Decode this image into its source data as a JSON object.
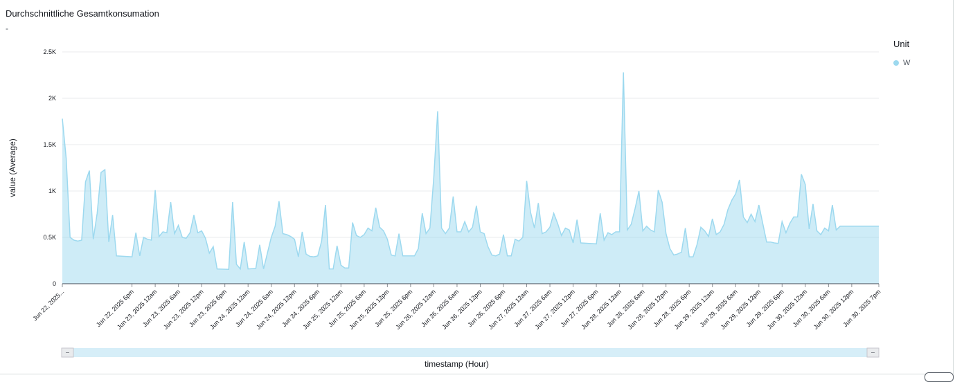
{
  "panel": {
    "title": "Durchschnittliche Gesamtkonsumation",
    "subtitle": "-"
  },
  "legend": {
    "title": "Unit",
    "items": [
      {
        "label": "W",
        "color": "#9dd9ef"
      }
    ]
  },
  "chart_data": {
    "type": "area",
    "ylabel": "value (Average)",
    "xlabel": "timestamp (Hour)",
    "ylim": [
      0,
      2500
    ],
    "yticks": [
      {
        "value": 0,
        "label": "0"
      },
      {
        "value": 500,
        "label": "0.5K"
      },
      {
        "value": 1000,
        "label": "1K"
      },
      {
        "value": 1500,
        "label": "1.5K"
      },
      {
        "value": 2000,
        "label": "2K"
      },
      {
        "value": 2500,
        "label": "2.5K"
      }
    ],
    "xlim": [
      "2025-06-22 00:00",
      "2025-06-30 19:00"
    ],
    "xticks": [
      {
        "x": "2025-06-22 00:00",
        "label": "Jun 22, 2025..."
      },
      {
        "x": "2025-06-22 18:00",
        "label": "Jun 22, 2025 6pm"
      },
      {
        "x": "2025-06-23 00:00",
        "label": "Jun 23, 2025 12am"
      },
      {
        "x": "2025-06-23 06:00",
        "label": "Jun 23, 2025 6am"
      },
      {
        "x": "2025-06-23 12:00",
        "label": "Jun 23, 2025 12pm"
      },
      {
        "x": "2025-06-23 18:00",
        "label": "Jun 23, 2025 6pm"
      },
      {
        "x": "2025-06-24 00:00",
        "label": "Jun 24, 2025 12am"
      },
      {
        "x": "2025-06-24 06:00",
        "label": "Jun 24, 2025 6am"
      },
      {
        "x": "2025-06-24 12:00",
        "label": "Jun 24, 2025 12pm"
      },
      {
        "x": "2025-06-24 18:00",
        "label": "Jun 24, 2025 6pm"
      },
      {
        "x": "2025-06-25 00:00",
        "label": "Jun 25, 2025 12am"
      },
      {
        "x": "2025-06-25 06:00",
        "label": "Jun 25, 2025 6am"
      },
      {
        "x": "2025-06-25 12:00",
        "label": "Jun 25, 2025 12pm"
      },
      {
        "x": "2025-06-25 18:00",
        "label": "Jun 25, 2025 6pm"
      },
      {
        "x": "2025-06-26 00:00",
        "label": "Jun 26, 2025 12am"
      },
      {
        "x": "2025-06-26 06:00",
        "label": "Jun 26, 2025 6am"
      },
      {
        "x": "2025-06-26 12:00",
        "label": "Jun 26, 2025 12pm"
      },
      {
        "x": "2025-06-26 18:00",
        "label": "Jun 26, 2025 6pm"
      },
      {
        "x": "2025-06-27 00:00",
        "label": "Jun 27, 2025 12am"
      },
      {
        "x": "2025-06-27 06:00",
        "label": "Jun 27, 2025 6am"
      },
      {
        "x": "2025-06-27 12:00",
        "label": "Jun 27, 2025 12pm"
      },
      {
        "x": "2025-06-27 18:00",
        "label": "Jun 27, 2025 6pm"
      },
      {
        "x": "2025-06-28 00:00",
        "label": "Jun 28, 2025 12am"
      },
      {
        "x": "2025-06-28 06:00",
        "label": "Jun 28, 2025 6am"
      },
      {
        "x": "2025-06-28 12:00",
        "label": "Jun 28, 2025 12pm"
      },
      {
        "x": "2025-06-28 18:00",
        "label": "Jun 28, 2025 6pm"
      },
      {
        "x": "2025-06-29 00:00",
        "label": "Jun 29, 2025 12am"
      },
      {
        "x": "2025-06-29 06:00",
        "label": "Jun 29, 2025 6am"
      },
      {
        "x": "2025-06-29 12:00",
        "label": "Jun 29, 2025 12pm"
      },
      {
        "x": "2025-06-29 18:00",
        "label": "Jun 29, 2025 6pm"
      },
      {
        "x": "2025-06-30 00:00",
        "label": "Jun 30, 2025 12am"
      },
      {
        "x": "2025-06-30 06:00",
        "label": "Jun 30, 2025 6am"
      },
      {
        "x": "2025-06-30 12:00",
        "label": "Jun 30, 2025 12pm"
      },
      {
        "x": "2025-06-30 19:00",
        "label": "Jun 30, 2025 7pm"
      }
    ],
    "grid": true,
    "legend_position": "right",
    "series": [
      {
        "name": "W",
        "color": "#9dd9ef",
        "points": [
          [
            "2025-06-22 00:00",
            1780
          ],
          [
            "2025-06-22 01:00",
            1350
          ],
          [
            "2025-06-22 02:00",
            500
          ],
          [
            "2025-06-22 03:00",
            470
          ],
          [
            "2025-06-22 04:00",
            460
          ],
          [
            "2025-06-22 05:00",
            470
          ],
          [
            "2025-06-22 06:00",
            1100
          ],
          [
            "2025-06-22 07:00",
            1220
          ],
          [
            "2025-06-22 08:00",
            480
          ],
          [
            "2025-06-22 09:00",
            760
          ],
          [
            "2025-06-22 10:00",
            1200
          ],
          [
            "2025-06-22 11:00",
            1230
          ],
          [
            "2025-06-22 12:00",
            450
          ],
          [
            "2025-06-22 13:00",
            740
          ],
          [
            "2025-06-22 14:00",
            300
          ],
          [
            "2025-06-22 18:00",
            290
          ],
          [
            "2025-06-22 19:00",
            550
          ],
          [
            "2025-06-22 20:00",
            300
          ],
          [
            "2025-06-22 21:00",
            500
          ],
          [
            "2025-06-22 22:00",
            480
          ],
          [
            "2025-06-22 23:00",
            470
          ],
          [
            "2025-06-23 00:00",
            1010
          ],
          [
            "2025-06-23 01:00",
            510
          ],
          [
            "2025-06-23 02:00",
            560
          ],
          [
            "2025-06-23 03:00",
            550
          ],
          [
            "2025-06-23 04:00",
            880
          ],
          [
            "2025-06-23 05:00",
            540
          ],
          [
            "2025-06-23 06:00",
            630
          ],
          [
            "2025-06-23 07:00",
            500
          ],
          [
            "2025-06-23 08:00",
            490
          ],
          [
            "2025-06-23 09:00",
            550
          ],
          [
            "2025-06-23 10:00",
            740
          ],
          [
            "2025-06-23 11:00",
            550
          ],
          [
            "2025-06-23 12:00",
            570
          ],
          [
            "2025-06-23 13:00",
            490
          ],
          [
            "2025-06-23 14:00",
            330
          ],
          [
            "2025-06-23 15:00",
            400
          ],
          [
            "2025-06-23 16:00",
            160
          ],
          [
            "2025-06-23 19:00",
            155
          ],
          [
            "2025-06-23 20:00",
            880
          ],
          [
            "2025-06-23 21:00",
            210
          ],
          [
            "2025-06-23 22:00",
            160
          ],
          [
            "2025-06-23 23:00",
            450
          ],
          [
            "2025-06-24 00:00",
            160
          ],
          [
            "2025-06-24 02:00",
            165
          ],
          [
            "2025-06-24 03:00",
            420
          ],
          [
            "2025-06-24 04:00",
            160
          ],
          [
            "2025-06-24 05:00",
            330
          ],
          [
            "2025-06-24 06:00",
            500
          ],
          [
            "2025-06-24 07:00",
            620
          ],
          [
            "2025-06-24 08:00",
            890
          ],
          [
            "2025-06-24 09:00",
            540
          ],
          [
            "2025-06-24 10:00",
            530
          ],
          [
            "2025-06-24 11:00",
            510
          ],
          [
            "2025-06-24 12:00",
            480
          ],
          [
            "2025-06-24 13:00",
            290
          ],
          [
            "2025-06-24 14:00",
            560
          ],
          [
            "2025-06-24 15:00",
            320
          ],
          [
            "2025-06-24 16:00",
            295
          ],
          [
            "2025-06-24 17:00",
            290
          ],
          [
            "2025-06-24 18:00",
            300
          ],
          [
            "2025-06-24 19:00",
            460
          ],
          [
            "2025-06-24 20:00",
            850
          ],
          [
            "2025-06-24 21:00",
            160
          ],
          [
            "2025-06-24 22:00",
            160
          ],
          [
            "2025-06-24 23:00",
            410
          ],
          [
            "2025-06-25 00:00",
            200
          ],
          [
            "2025-06-25 01:00",
            170
          ],
          [
            "2025-06-25 02:00",
            170
          ],
          [
            "2025-06-25 03:00",
            660
          ],
          [
            "2025-06-25 04:00",
            520
          ],
          [
            "2025-06-25 05:00",
            500
          ],
          [
            "2025-06-25 06:00",
            530
          ],
          [
            "2025-06-25 07:00",
            600
          ],
          [
            "2025-06-25 08:00",
            570
          ],
          [
            "2025-06-25 09:00",
            820
          ],
          [
            "2025-06-25 10:00",
            610
          ],
          [
            "2025-06-25 11:00",
            570
          ],
          [
            "2025-06-25 12:00",
            480
          ],
          [
            "2025-06-25 13:00",
            310
          ],
          [
            "2025-06-25 14:00",
            300
          ],
          [
            "2025-06-25 15:00",
            540
          ],
          [
            "2025-06-25 16:00",
            300
          ],
          [
            "2025-06-25 19:00",
            300
          ],
          [
            "2025-06-25 20:00",
            380
          ],
          [
            "2025-06-25 21:00",
            760
          ],
          [
            "2025-06-25 22:00",
            540
          ],
          [
            "2025-06-25 23:00",
            600
          ],
          [
            "2025-06-26 00:00",
            1150
          ],
          [
            "2025-06-26 01:00",
            1860
          ],
          [
            "2025-06-26 02:00",
            600
          ],
          [
            "2025-06-26 03:00",
            540
          ],
          [
            "2025-06-26 04:00",
            600
          ],
          [
            "2025-06-26 05:00",
            940
          ],
          [
            "2025-06-26 06:00",
            560
          ],
          [
            "2025-06-26 07:00",
            560
          ],
          [
            "2025-06-26 08:00",
            670
          ],
          [
            "2025-06-26 09:00",
            560
          ],
          [
            "2025-06-26 10:00",
            610
          ],
          [
            "2025-06-26 11:00",
            840
          ],
          [
            "2025-06-26 12:00",
            560
          ],
          [
            "2025-06-26 13:00",
            540
          ],
          [
            "2025-06-26 14:00",
            400
          ],
          [
            "2025-06-26 15:00",
            310
          ],
          [
            "2025-06-26 16:00",
            300
          ],
          [
            "2025-06-26 17:00",
            320
          ],
          [
            "2025-06-26 18:00",
            530
          ],
          [
            "2025-06-26 19:00",
            300
          ],
          [
            "2025-06-26 20:00",
            300
          ],
          [
            "2025-06-26 21:00",
            480
          ],
          [
            "2025-06-26 22:00",
            460
          ],
          [
            "2025-06-26 23:00",
            500
          ],
          [
            "2025-06-27 00:00",
            1110
          ],
          [
            "2025-06-27 01:00",
            770
          ],
          [
            "2025-06-27 02:00",
            600
          ],
          [
            "2025-06-27 03:00",
            870
          ],
          [
            "2025-06-27 04:00",
            540
          ],
          [
            "2025-06-27 05:00",
            560
          ],
          [
            "2025-06-27 06:00",
            610
          ],
          [
            "2025-06-27 07:00",
            760
          ],
          [
            "2025-06-27 08:00",
            650
          ],
          [
            "2025-06-27 09:00",
            520
          ],
          [
            "2025-06-27 10:00",
            600
          ],
          [
            "2025-06-27 11:00",
            580
          ],
          [
            "2025-06-27 12:00",
            440
          ],
          [
            "2025-06-27 13:00",
            690
          ],
          [
            "2025-06-27 14:00",
            440
          ],
          [
            "2025-06-27 18:00",
            430
          ],
          [
            "2025-06-27 19:00",
            760
          ],
          [
            "2025-06-27 20:00",
            470
          ],
          [
            "2025-06-27 21:00",
            550
          ],
          [
            "2025-06-27 22:00",
            530
          ],
          [
            "2025-06-27 23:00",
            560
          ],
          [
            "2025-06-28 00:00",
            560
          ],
          [
            "2025-06-28 01:00",
            2280
          ],
          [
            "2025-06-28 02:00",
            580
          ],
          [
            "2025-06-28 03:00",
            640
          ],
          [
            "2025-06-28 04:00",
            810
          ],
          [
            "2025-06-28 05:00",
            1000
          ],
          [
            "2025-06-28 06:00",
            570
          ],
          [
            "2025-06-28 07:00",
            620
          ],
          [
            "2025-06-28 08:00",
            580
          ],
          [
            "2025-06-28 09:00",
            560
          ],
          [
            "2025-06-28 10:00",
            1010
          ],
          [
            "2025-06-28 11:00",
            880
          ],
          [
            "2025-06-28 12:00",
            540
          ],
          [
            "2025-06-28 13:00",
            380
          ],
          [
            "2025-06-28 14:00",
            310
          ],
          [
            "2025-06-28 15:00",
            320
          ],
          [
            "2025-06-28 16:00",
            340
          ],
          [
            "2025-06-28 17:00",
            600
          ],
          [
            "2025-06-28 18:00",
            290
          ],
          [
            "2025-06-28 19:00",
            290
          ],
          [
            "2025-06-28 20:00",
            420
          ],
          [
            "2025-06-28 21:00",
            610
          ],
          [
            "2025-06-28 22:00",
            570
          ],
          [
            "2025-06-28 23:00",
            510
          ],
          [
            "2025-06-29 00:00",
            700
          ],
          [
            "2025-06-29 01:00",
            530
          ],
          [
            "2025-06-29 02:00",
            560
          ],
          [
            "2025-06-29 03:00",
            640
          ],
          [
            "2025-06-29 04:00",
            800
          ],
          [
            "2025-06-29 05:00",
            900
          ],
          [
            "2025-06-29 06:00",
            970
          ],
          [
            "2025-06-29 07:00",
            1120
          ],
          [
            "2025-06-29 08:00",
            720
          ],
          [
            "2025-06-29 09:00",
            660
          ],
          [
            "2025-06-29 10:00",
            750
          ],
          [
            "2025-06-29 11:00",
            670
          ],
          [
            "2025-06-29 12:00",
            850
          ],
          [
            "2025-06-29 13:00",
            650
          ],
          [
            "2025-06-29 14:00",
            450
          ],
          [
            "2025-06-29 15:00",
            450
          ],
          [
            "2025-06-29 16:00",
            440
          ],
          [
            "2025-06-29 17:00",
            435
          ],
          [
            "2025-06-29 18:00",
            670
          ],
          [
            "2025-06-29 19:00",
            550
          ],
          [
            "2025-06-29 20:00",
            650
          ],
          [
            "2025-06-29 21:00",
            720
          ],
          [
            "2025-06-29 22:00",
            720
          ],
          [
            "2025-06-29 23:00",
            1180
          ],
          [
            "2025-06-30 00:00",
            1070
          ],
          [
            "2025-06-30 01:00",
            590
          ],
          [
            "2025-06-30 02:00",
            860
          ],
          [
            "2025-06-30 03:00",
            570
          ],
          [
            "2025-06-30 04:00",
            530
          ],
          [
            "2025-06-30 05:00",
            600
          ],
          [
            "2025-06-30 06:00",
            570
          ],
          [
            "2025-06-30 07:00",
            850
          ],
          [
            "2025-06-30 08:00",
            580
          ],
          [
            "2025-06-30 09:00",
            620
          ]
        ]
      }
    ]
  }
}
